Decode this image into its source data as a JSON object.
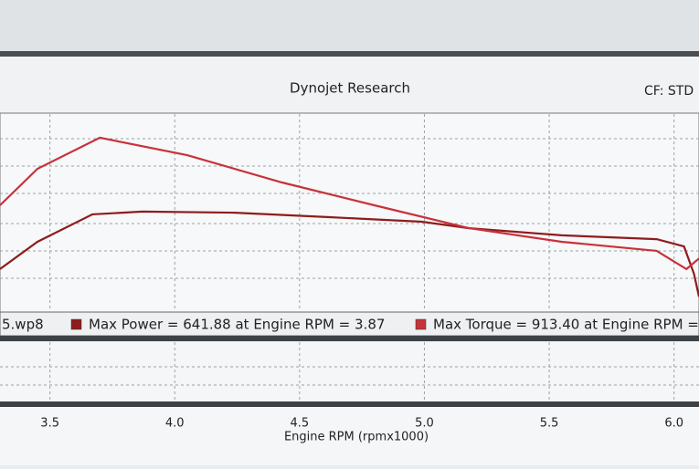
{
  "chart_data": {
    "type": "line",
    "title": "Dynojet Research",
    "subtitle": "CF: STD",
    "file_label": "5.wp8",
    "x_label": "Engine RPM (rpmx1000)",
    "xlim": [
      3.3,
      6.1
    ],
    "xticks": [
      3.5,
      {
        "value": 4,
        "label": "4.0"
      },
      4.5,
      {
        "value": 5,
        "label": "5.0"
      },
      5.5,
      {
        "value": 6,
        "label": "6.0"
      }
    ],
    "ylim": [
      280,
      1000
    ],
    "grid": true,
    "series": [
      {
        "name": "Max Power = 641.88 at Engine RPM = 3.87",
        "color": "#8e1c1c",
        "x": [
          3.3,
          3.45,
          3.67,
          3.87,
          4.24,
          4.61,
          4.99,
          5.18,
          5.55,
          5.93,
          6.04,
          6.08,
          6.1
        ],
        "values": [
          431,
          531,
          632,
          641.88,
          638,
          622,
          605,
          581,
          555,
          541,
          514,
          414,
          330
        ]
      },
      {
        "name": "Max Torque = 913.40 at Engine RPM =",
        "color": "#c8323a",
        "x": [
          3.3,
          3.45,
          3.7,
          4.05,
          4.43,
          4.8,
          5.18,
          5.55,
          5.93,
          6.05,
          6.1
        ],
        "values": [
          665,
          799,
          913.4,
          849,
          749,
          665,
          581,
          531,
          498,
          431,
          470
        ]
      }
    ]
  }
}
